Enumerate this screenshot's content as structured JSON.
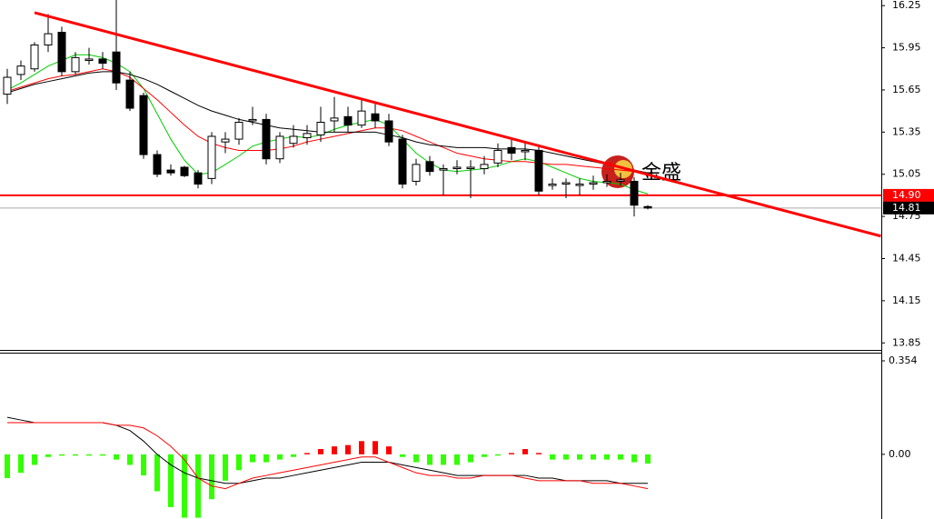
{
  "chart_data": {
    "type": "candlestick",
    "ylim": [
      13.8,
      16.29
    ],
    "yticks": [
      16.25,
      15.95,
      15.65,
      15.35,
      15.05,
      14.75,
      14.45,
      14.15,
      13.85
    ],
    "open": [
      15.62,
      15.76,
      15.8,
      15.97,
      16.06,
      15.78,
      15.86,
      15.87,
      15.92,
      15.72,
      15.61,
      15.19,
      15.08,
      15.1,
      15.06,
      15.02,
      15.28,
      15.3,
      15.43,
      15.44,
      15.16,
      15.27,
      15.31,
      15.33,
      15.43,
      15.46,
      15.4,
      15.48,
      15.43,
      15.3,
      15.0,
      15.14,
      15.08,
      15.09,
      15.09,
      15.09,
      15.13,
      15.24,
      15.21,
      15.22,
      14.97,
      14.98,
      14.97,
      14.98,
      14.99,
      15.0,
      15.0,
      14.82
    ],
    "high": [
      15.8,
      15.86,
      15.99,
      16.19,
      16.1,
      15.92,
      15.95,
      15.92,
      16.29,
      15.78,
      15.63,
      15.22,
      15.12,
      15.11,
      15.08,
      15.35,
      15.35,
      15.45,
      15.53,
      15.48,
      15.35,
      15.4,
      15.4,
      15.53,
      15.6,
      15.53,
      15.58,
      15.55,
      15.48,
      15.33,
      15.16,
      15.18,
      15.12,
      15.15,
      15.15,
      15.18,
      15.27,
      15.3,
      15.28,
      15.26,
      15.02,
      15.02,
      15.02,
      15.04,
      15.05,
      15.06,
      15.03,
      14.83
    ],
    "low": [
      15.55,
      15.72,
      15.78,
      15.92,
      15.75,
      15.76,
      15.83,
      15.8,
      15.65,
      15.5,
      15.16,
      15.03,
      15.04,
      15.03,
      14.95,
      14.98,
      15.2,
      15.26,
      15.4,
      15.12,
      15.13,
      15.24,
      15.26,
      15.28,
      15.35,
      15.35,
      15.38,
      15.38,
      15.25,
      14.95,
      14.97,
      15.04,
      14.9,
      15.05,
      14.88,
      15.05,
      15.1,
      15.15,
      15.15,
      14.9,
      14.94,
      14.88,
      14.9,
      14.94,
      14.96,
      14.97,
      14.75,
      14.8
    ],
    "close": [
      15.74,
      15.82,
      15.97,
      16.05,
      15.78,
      15.88,
      15.87,
      15.84,
      15.7,
      15.52,
      15.19,
      15.05,
      15.06,
      15.04,
      14.98,
      15.32,
      15.3,
      15.42,
      15.44,
      15.16,
      15.32,
      15.32,
      15.34,
      15.42,
      15.45,
      15.4,
      15.5,
      15.43,
      15.28,
      14.98,
      15.12,
      15.07,
      15.09,
      15.1,
      15.1,
      15.12,
      15.22,
      15.2,
      15.22,
      14.93,
      14.98,
      14.99,
      14.98,
      14.99,
      15.0,
      15.01,
      14.83,
      14.81
    ],
    "series": [
      {
        "color": "#00cc00",
        "values": [
          15.65,
          15.7,
          15.76,
          15.82,
          15.86,
          15.9,
          15.9,
          15.88,
          15.84,
          15.78,
          15.66,
          15.48,
          15.3,
          15.15,
          15.05,
          15.06,
          15.12,
          15.18,
          15.25,
          15.28,
          15.3,
          15.32,
          15.31,
          15.33,
          15.37,
          15.4,
          15.42,
          15.44,
          15.4,
          15.3,
          15.2,
          15.13,
          15.08,
          15.07,
          15.08,
          15.09,
          15.11,
          15.14,
          15.16,
          15.14,
          15.1,
          15.06,
          15.02,
          15.0,
          14.99,
          14.98,
          14.94,
          14.91
        ]
      },
      {
        "color": "#ff0000",
        "values": [
          15.64,
          15.67,
          15.7,
          15.73,
          15.75,
          15.76,
          15.78,
          15.8,
          15.78,
          15.74,
          15.66,
          15.58,
          15.49,
          15.4,
          15.32,
          15.27,
          15.24,
          15.22,
          15.22,
          15.22,
          15.23,
          15.25,
          15.28,
          15.3,
          15.32,
          15.34,
          15.36,
          15.38,
          15.38,
          15.36,
          15.32,
          15.28,
          15.24,
          15.2,
          15.18,
          15.16,
          15.15,
          15.14,
          15.14,
          15.13,
          15.12,
          15.12,
          15.11,
          15.1,
          15.09,
          15.08,
          15.07,
          15.05
        ]
      },
      {
        "color": "#000000",
        "values": [
          15.63,
          15.66,
          15.69,
          15.71,
          15.73,
          15.75,
          15.77,
          15.78,
          15.78,
          15.76,
          15.73,
          15.69,
          15.64,
          15.59,
          15.54,
          15.5,
          15.47,
          15.44,
          15.42,
          15.4,
          15.38,
          15.37,
          15.36,
          15.35,
          15.35,
          15.35,
          15.35,
          15.35,
          15.33,
          15.31,
          15.28,
          15.26,
          15.25,
          15.24,
          15.24,
          15.24,
          15.23,
          15.23,
          15.23,
          15.22,
          15.2,
          15.18,
          15.16,
          15.14,
          15.12,
          15.1,
          15.08,
          15.06
        ]
      }
    ],
    "trendline": {
      "color": "#ff0000",
      "x": [
        2,
        64.1
      ],
      "values": [
        16.2,
        14.61
      ]
    },
    "support": {
      "color": "#ff0000",
      "value": 14.9,
      "label": "14.90"
    },
    "last_price": {
      "value": 14.81
    },
    "watermark": "金盛",
    "macd": {
      "ylim": [
        -0.245,
        0.385
      ],
      "yticks": [
        0.354,
        {
          "value": 0,
          "label": "0.00"
        }
      ],
      "up_color": "#ff0000",
      "down_color": "#33ff00",
      "histogram": [
        -0.09,
        -0.07,
        -0.04,
        -0.01,
        -0.005,
        -0.005,
        -0.005,
        -0.005,
        -0.02,
        -0.04,
        -0.08,
        -0.14,
        -0.2,
        -0.24,
        -0.24,
        -0.17,
        -0.1,
        -0.06,
        -0.03,
        -0.03,
        -0.02,
        -0.01,
        0.005,
        0.02,
        0.03,
        0.035,
        0.05,
        0.05,
        0.03,
        -0.01,
        -0.03,
        -0.04,
        -0.04,
        -0.04,
        -0.03,
        -0.01,
        -0.005,
        0.005,
        0.02,
        0.005,
        -0.02,
        -0.02,
        -0.02,
        -0.02,
        -0.02,
        -0.02,
        -0.03,
        -0.035
      ],
      "lines": [
        {
          "color": "#000000",
          "values": [
            0.14,
            0.13,
            0.12,
            0.12,
            0.12,
            0.12,
            0.12,
            0.12,
            0.11,
            0.09,
            0.05,
            0.0,
            -0.04,
            -0.07,
            -0.09,
            -0.1,
            -0.11,
            -0.11,
            -0.1,
            -0.09,
            -0.09,
            -0.08,
            -0.07,
            -0.06,
            -0.05,
            -0.04,
            -0.03,
            -0.03,
            -0.03,
            -0.04,
            -0.05,
            -0.06,
            -0.07,
            -0.08,
            -0.08,
            -0.08,
            -0.08,
            -0.08,
            -0.08,
            -0.09,
            -0.09,
            -0.1,
            -0.1,
            -0.1,
            -0.1,
            -0.11,
            -0.11,
            -0.11
          ]
        },
        {
          "color": "#ff0000",
          "values": [
            0.12,
            0.12,
            0.12,
            0.12,
            0.12,
            0.12,
            0.12,
            0.12,
            0.11,
            0.11,
            0.1,
            0.07,
            0.03,
            -0.02,
            -0.09,
            -0.12,
            -0.13,
            -0.11,
            -0.09,
            -0.08,
            -0.07,
            -0.06,
            -0.05,
            -0.04,
            -0.03,
            -0.02,
            -0.01,
            -0.01,
            -0.03,
            -0.05,
            -0.07,
            -0.08,
            -0.08,
            -0.09,
            -0.09,
            -0.08,
            -0.08,
            -0.08,
            -0.09,
            -0.1,
            -0.1,
            -0.1,
            -0.1,
            -0.11,
            -0.11,
            -0.11,
            -0.12,
            -0.13
          ]
        }
      ]
    }
  }
}
